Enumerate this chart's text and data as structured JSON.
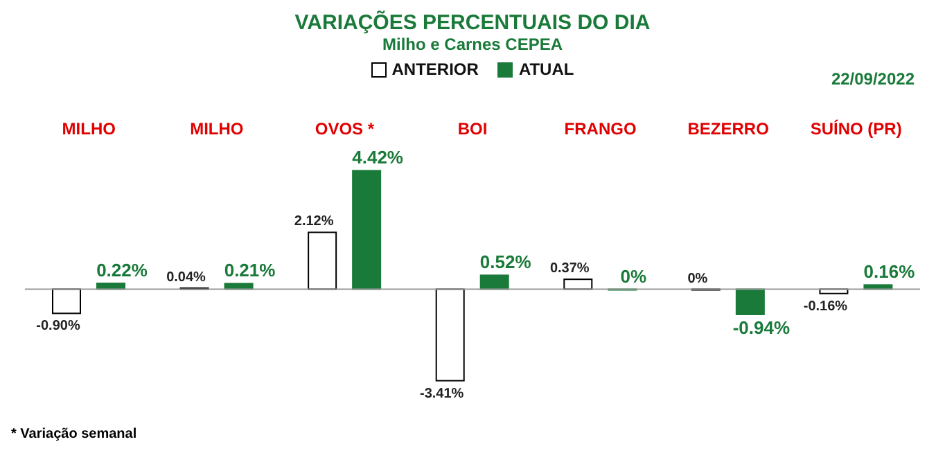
{
  "chart_data": {
    "type": "bar",
    "title": "VARIAÇÕES PERCENTUAIS DO DIA",
    "subtitle": "Milho e Carnes CEPEA",
    "categories": [
      "MILHO",
      "MILHO",
      "OVOS *",
      "BOI",
      "FRANGO",
      "BEZERRO",
      "SUÍNO (PR)"
    ],
    "series": [
      {
        "name": "ANTERIOR",
        "color": "#ffffff",
        "values": [
          -0.9,
          0.04,
          2.12,
          -3.41,
          0.37,
          0,
          -0.16
        ],
        "value_labels": [
          "-0.90%",
          "0.04%",
          "2.12%",
          "-3.41%",
          "0.37%",
          "0%",
          "-0.16%"
        ]
      },
      {
        "name": "ATUAL",
        "color": "#1a7a3a",
        "values": [
          0.22,
          0.21,
          4.42,
          0.52,
          0,
          -0.94,
          0.16
        ],
        "value_labels": [
          "0.22%",
          "0.21%",
          "4.42%",
          "0.52%",
          "0%",
          "-0.94%",
          "0.16%"
        ]
      }
    ],
    "legend": "top",
    "annotations": [
      "22/09/2022",
      "* Variação semanal"
    ]
  }
}
